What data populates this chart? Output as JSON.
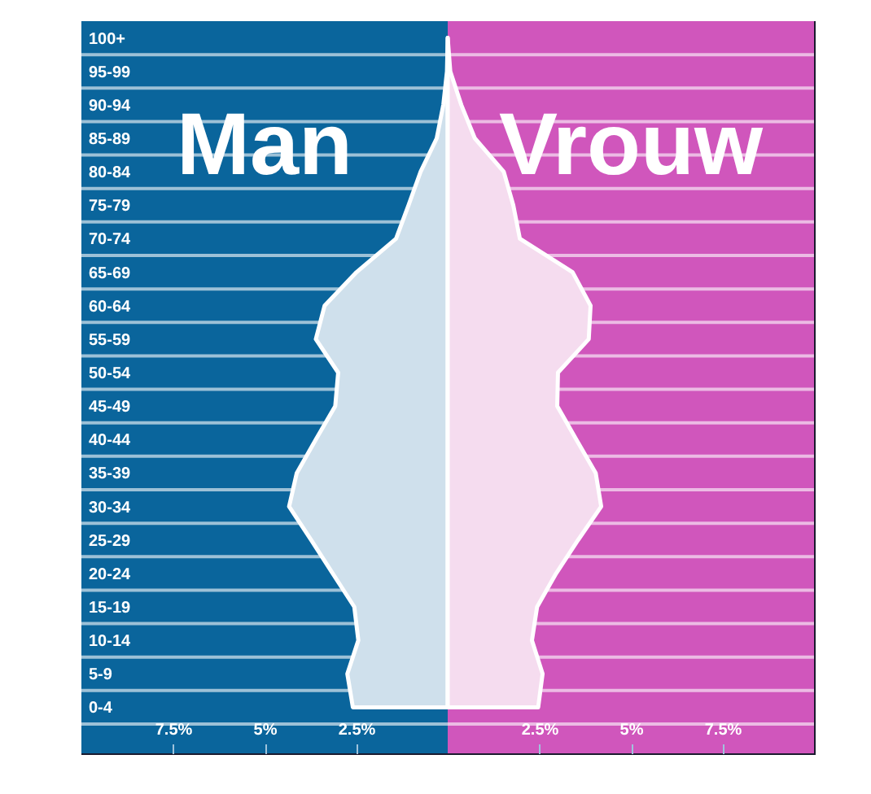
{
  "chart_data": {
    "type": "area",
    "orientation": "horizontal",
    "categories": [
      "100+",
      "95-99",
      "90-94",
      "85-89",
      "80-84",
      "75-79",
      "70-74",
      "65-69",
      "60-64",
      "55-59",
      "50-54",
      "45-49",
      "40-44",
      "35-39",
      "30-34",
      "25-29",
      "20-24",
      "15-19",
      "10-14",
      "5-9",
      "0-4"
    ],
    "series": [
      {
        "name": "Man",
        "color": "#cfe0ec",
        "values": [
          0,
          -0.02,
          -0.12,
          -0.3,
          -0.74,
          -1.07,
          -1.41,
          -2.49,
          -3.36,
          -3.6,
          -2.99,
          -3.07,
          -3.6,
          -4.12,
          -4.33,
          -3.73,
          -3.14,
          -2.55,
          -2.44,
          -2.74,
          -2.59
        ]
      },
      {
        "name": "Vrouw",
        "color": "#f5dcef",
        "values": [
          0,
          0.07,
          0.37,
          0.74,
          1.53,
          1.79,
          1.97,
          3.41,
          3.9,
          3.85,
          3.01,
          2.99,
          3.51,
          4.04,
          4.19,
          3.56,
          2.96,
          2.44,
          2.3,
          2.59,
          2.47
        ]
      }
    ],
    "xlim": [
      -10,
      10
    ],
    "xticks": [
      {
        "value": -7.5,
        "label": "7.5%"
      },
      {
        "value": -5,
        "label": "5%"
      },
      {
        "value": -2.5,
        "label": "2.5%"
      },
      {
        "value": 2.5,
        "label": "2.5%"
      },
      {
        "value": 5,
        "label": "5%"
      },
      {
        "value": 7.5,
        "label": "7.5%"
      }
    ],
    "bands": [
      {
        "axis": "x",
        "from": -10,
        "to": 0,
        "color": "#0a659c"
      },
      {
        "axis": "x",
        "from": 0,
        "to": 10,
        "color": "#d056bc"
      }
    ],
    "grid": "y",
    "legend": false
  }
}
